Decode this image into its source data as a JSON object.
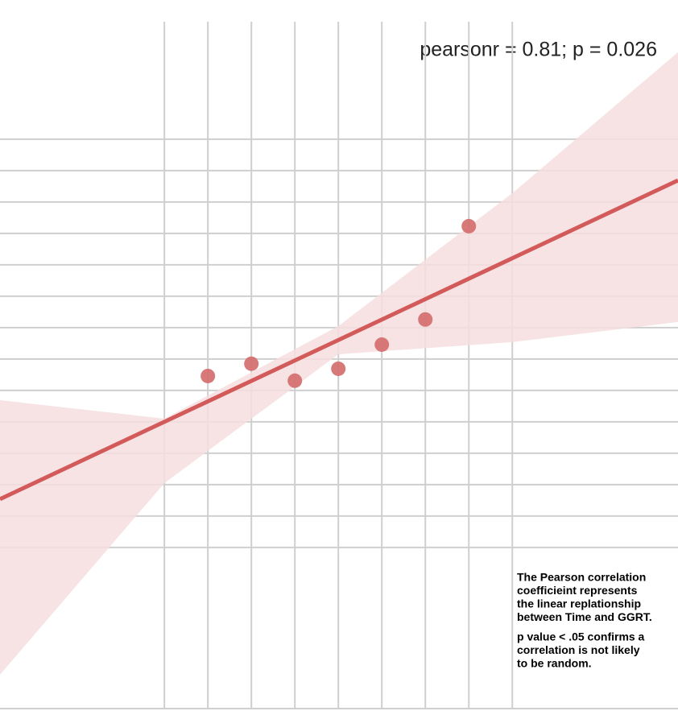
{
  "chart_data": {
    "type": "scatter",
    "title": "pearsonr = 0.81; p = 0.026",
    "annotations": [
      [
        "The Pearson correlation",
        "coefficieint represents",
        "the linear replationship",
        "between Time and GGRT."
      ],
      [
        "p value < .05 confirms a",
        "correlation is not likely",
        "to be random."
      ]
    ],
    "x": [
      1,
      2,
      3,
      4,
      5,
      6,
      7
    ],
    "values": [
      5.46,
      5.85,
      5.31,
      5.69,
      6.46,
      7.26,
      10.23
    ],
    "color": "#d36a6a",
    "fit": {
      "x": [
        -3.78,
        11.81
      ],
      "values": [
        1.54,
        11.69
      ],
      "color": "#d35a5a"
    },
    "band": {
      "x": [
        -3.78,
        0,
        4,
        8,
        11.81
      ],
      "upper": [
        4.69,
        4.1,
        7.05,
        11.28,
        15.77
      ],
      "lower": [
        -4.05,
        2.05,
        6.15,
        6.54,
        7.18
      ],
      "color": "#f6dede"
    },
    "xlim": [
      -3.78,
      11.81
    ],
    "ylim": [
      -5.13,
      16.74
    ],
    "xticks": [
      0,
      1,
      2,
      3,
      4,
      5,
      6,
      7,
      8
    ],
    "yticks": [
      0,
      1,
      2,
      3,
      4,
      5,
      6,
      7,
      8,
      9,
      10,
      11,
      12,
      13
    ],
    "grid": true
  }
}
